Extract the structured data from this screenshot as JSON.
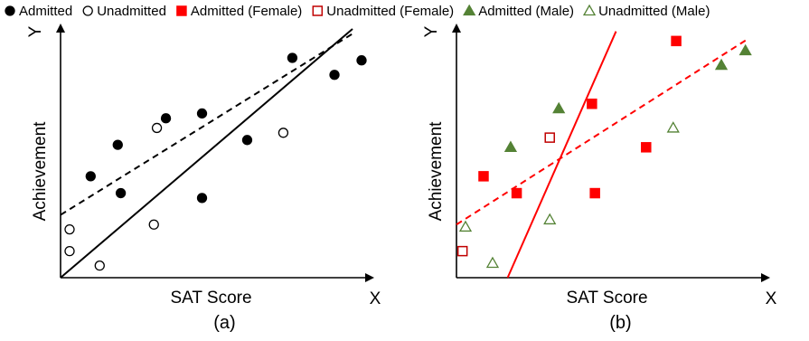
{
  "legend": [
    {
      "label": "Admitted",
      "marker": "circle",
      "filled": true,
      "color": "#000000"
    },
    {
      "label": "Unadmitted",
      "marker": "circle",
      "filled": false,
      "color": "#000000"
    },
    {
      "label": "Admitted (Female)",
      "marker": "square",
      "filled": true,
      "color": "#ff0000"
    },
    {
      "label": "Unadmitted (Female)",
      "marker": "square",
      "filled": false,
      "color": "#c00000"
    },
    {
      "label": "Admitted (Male)",
      "marker": "triangle",
      "filled": true,
      "color": "#548235"
    },
    {
      "label": "Unadmitted (Male)",
      "marker": "triangle",
      "filled": false,
      "color": "#548235"
    }
  ],
  "chart_data": [
    {
      "type": "scatter",
      "caption": "(a)",
      "xlabel": "SAT Score",
      "ylabel": "Achievement",
      "x_axis_letter": "X",
      "y_axis_letter": "Y",
      "xlim": [
        0,
        100
      ],
      "ylim": [
        0,
        100
      ],
      "grid": false,
      "series": [
        {
          "name": "Admitted",
          "marker": "circle",
          "filled": true,
          "color": "#000000",
          "points": [
            [
              10,
              42
            ],
            [
              19,
              55
            ],
            [
              20,
              35
            ],
            [
              35,
              66
            ],
            [
              47,
              68
            ],
            [
              47,
              33
            ],
            [
              62,
              57
            ],
            [
              77,
              91
            ],
            [
              91,
              84
            ],
            [
              100,
              90
            ]
          ]
        },
        {
          "name": "Unadmitted",
          "marker": "circle",
          "filled": false,
          "color": "#000000",
          "points": [
            [
              3,
              20
            ],
            [
              3,
              11
            ],
            [
              13,
              5
            ],
            [
              31,
              22
            ],
            [
              32,
              62
            ],
            [
              74,
              60
            ]
          ]
        }
      ],
      "lines": [
        {
          "style": "solid",
          "color": "#000000",
          "from": [
            0,
            0
          ],
          "to": [
            97,
            103
          ]
        },
        {
          "style": "dashed",
          "color": "#000000",
          "from": [
            0,
            26
          ],
          "to": [
            97,
            101
          ]
        }
      ]
    },
    {
      "type": "scatter",
      "caption": "(b)",
      "xlabel": "SAT Score",
      "ylabel": "Achievement",
      "x_axis_letter": "X",
      "y_axis_letter": "Y",
      "xlim": [
        0,
        100
      ],
      "ylim": [
        0,
        100
      ],
      "grid": false,
      "series": [
        {
          "name": "Admitted (Female)",
          "marker": "square",
          "filled": true,
          "color": "#ff0000",
          "points": [
            [
              9,
              42
            ],
            [
              20,
              35
            ],
            [
              45,
              72
            ],
            [
              46,
              35
            ],
            [
              63,
              54
            ],
            [
              73,
              98
            ]
          ]
        },
        {
          "name": "Unadmitted (Female)",
          "marker": "square",
          "filled": false,
          "color": "#c00000",
          "points": [
            [
              2,
              11
            ],
            [
              31,
              58
            ]
          ]
        },
        {
          "name": "Admitted (Male)",
          "marker": "triangle",
          "filled": true,
          "color": "#548235",
          "points": [
            [
              18,
              54
            ],
            [
              34,
              70
            ],
            [
              88,
              88
            ],
            [
              96,
              94
            ]
          ]
        },
        {
          "name": "Unadmitted (Male)",
          "marker": "triangle",
          "filled": false,
          "color": "#548235",
          "points": [
            [
              3,
              21
            ],
            [
              12,
              6
            ],
            [
              31,
              24
            ],
            [
              72,
              62
            ]
          ]
        }
      ],
      "lines": [
        {
          "style": "solid",
          "color": "#ff0000",
          "from": [
            17,
            0
          ],
          "to": [
            53,
            102
          ]
        },
        {
          "style": "dashed",
          "color": "#ff0000",
          "from": [
            0,
            22
          ],
          "to": [
            97,
            99
          ]
        }
      ]
    }
  ]
}
